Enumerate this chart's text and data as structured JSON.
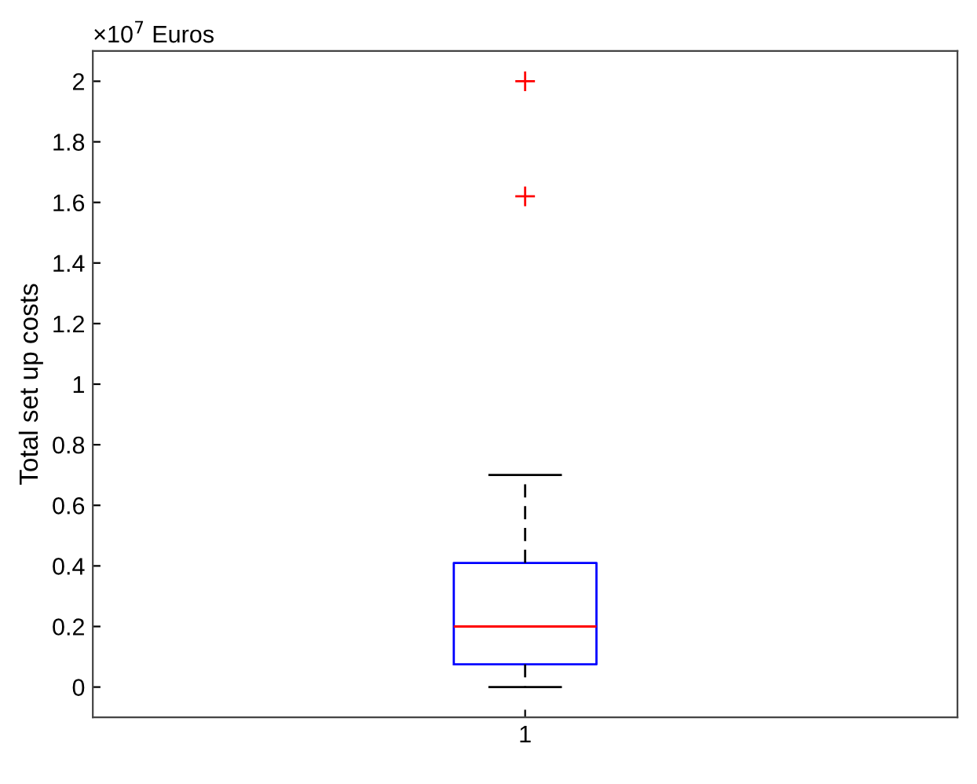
{
  "chart_data": {
    "type": "box",
    "ylabel": "Total set up costs",
    "annotations": [
      "×10$^{7}$ Euros"
    ],
    "categories": [
      "1"
    ],
    "series": [
      {
        "color": "#0000ff",
        "boxes": [
          {
            "low": 0,
            "q1": 0.075,
            "median": 0.2,
            "q3": 0.41,
            "high": 0.7,
            "outliers": [
              1.62,
              2.0
            ]
          }
        ]
      }
    ],
    "ylim": [
      -0.1,
      2.1
    ],
    "yticks": [
      0,
      0.2,
      0.4,
      0.6,
      0.8,
      1,
      1.2,
      1.4,
      1.6,
      1.8,
      2
    ],
    "grid": false,
    "legend": false
  }
}
